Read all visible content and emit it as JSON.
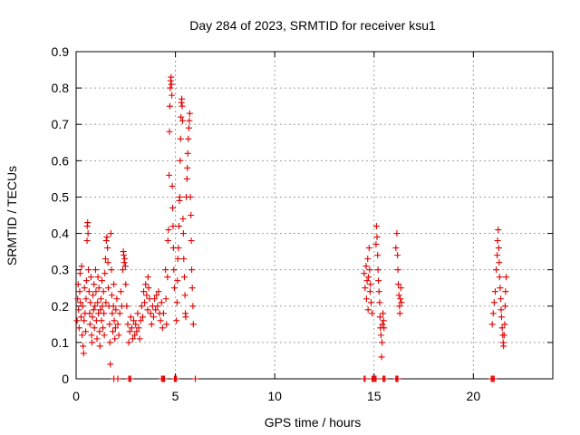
{
  "chart_data": {
    "type": "scatter",
    "title": "Day 284 of 2023, SRMTID for receiver ksu1",
    "xlabel": "GPS time / hours",
    "ylabel": "SRMTID / TECUs",
    "xlim": [
      0,
      24
    ],
    "ylim": [
      0,
      0.9
    ],
    "xticks": [
      0,
      5,
      10,
      15,
      20
    ],
    "yticks": [
      0,
      0.1,
      0.2,
      0.3,
      0.4,
      0.5,
      0.6,
      0.7,
      0.8,
      0.9
    ],
    "grid": true,
    "marker": "plus",
    "color": "#e00000",
    "series": [
      {
        "name": "SRMTID",
        "points": [
          [
            0.05,
            0.16
          ],
          [
            0.08,
            0.22
          ],
          [
            0.1,
            0.26
          ],
          [
            0.12,
            0.19
          ],
          [
            0.15,
            0.14
          ],
          [
            0.18,
            0.24
          ],
          [
            0.2,
            0.29
          ],
          [
            0.22,
            0.21
          ],
          [
            0.25,
            0.17
          ],
          [
            0.28,
            0.31
          ],
          [
            0.3,
            0.12
          ],
          [
            0.33,
            0.2
          ],
          [
            0.35,
            0.09
          ],
          [
            0.38,
            0.07
          ],
          [
            0.4,
            0.16
          ],
          [
            0.42,
            0.25
          ],
          [
            0.45,
            0.18
          ],
          [
            0.48,
            0.13
          ],
          [
            0.5,
            0.22
          ],
          [
            0.52,
            0.27
          ],
          [
            0.55,
            0.38
          ],
          [
            0.56,
            0.42
          ],
          [
            0.58,
            0.43
          ],
          [
            0.6,
            0.4
          ],
          [
            0.62,
            0.3
          ],
          [
            0.65,
            0.24
          ],
          [
            0.68,
            0.18
          ],
          [
            0.7,
            0.15
          ],
          [
            0.72,
            0.21
          ],
          [
            0.75,
            0.28
          ],
          [
            0.78,
            0.12
          ],
          [
            0.8,
            0.1
          ],
          [
            0.82,
            0.17
          ],
          [
            0.85,
            0.23
          ],
          [
            0.88,
            0.19
          ],
          [
            0.9,
            0.26
          ],
          [
            0.92,
            0.14
          ],
          [
            0.95,
            0.2
          ],
          [
            0.98,
            0.3
          ],
          [
            1.0,
            0.24
          ],
          [
            1.02,
            0.16
          ],
          [
            1.05,
            0.11
          ],
          [
            1.08,
            0.21
          ],
          [
            1.1,
            0.28
          ],
          [
            1.12,
            0.18
          ],
          [
            1.15,
            0.25
          ],
          [
            1.18,
            0.13
          ],
          [
            1.2,
            0.09
          ],
          [
            1.22,
            0.19
          ],
          [
            1.25,
            0.22
          ],
          [
            1.28,
            0.16
          ],
          [
            1.3,
            0.27
          ],
          [
            1.32,
            0.2
          ],
          [
            1.35,
            0.14
          ],
          [
            1.38,
            0.24
          ],
          [
            1.4,
            0.18
          ],
          [
            1.42,
            0.12
          ],
          [
            1.45,
            0.29
          ],
          [
            1.48,
            0.33
          ],
          [
            1.5,
            0.21
          ],
          [
            1.52,
            0.38
          ],
          [
            1.55,
            0.39
          ],
          [
            1.58,
            0.36
          ],
          [
            1.6,
            0.32
          ],
          [
            1.62,
            0.25
          ],
          [
            1.65,
            0.2
          ],
          [
            1.68,
            0.15
          ],
          [
            1.7,
            0.1
          ],
          [
            1.72,
            0.04
          ],
          [
            1.75,
            0.4
          ],
          [
            1.78,
            0.3
          ],
          [
            1.8,
            0.23
          ],
          [
            1.82,
            0.18
          ],
          [
            1.85,
            0.13
          ],
          [
            1.88,
            0.2
          ],
          [
            1.9,
            0.26
          ],
          [
            1.92,
            0.16
          ],
          [
            1.95,
            0.11
          ],
          [
            1.98,
            0.14
          ],
          [
            2.0,
            0.19
          ],
          [
            2.05,
            0.22
          ],
          [
            2.1,
            0.15
          ],
          [
            2.15,
            0.12
          ],
          [
            2.2,
            0.18
          ],
          [
            2.25,
            0.24
          ],
          [
            2.3,
            0.2
          ],
          [
            2.35,
            0.3
          ],
          [
            2.38,
            0.35
          ],
          [
            2.4,
            0.34
          ],
          [
            2.42,
            0.32
          ],
          [
            2.45,
            0.33
          ],
          [
            2.48,
            0.31
          ],
          [
            2.5,
            0.26
          ],
          [
            2.55,
            0.2
          ],
          [
            2.6,
            0.15
          ],
          [
            2.65,
            0.1
          ],
          [
            2.7,
            0.13
          ],
          [
            2.75,
            0.17
          ],
          [
            2.8,
            0.14
          ],
          [
            2.85,
            0.11
          ],
          [
            2.9,
            0.16
          ],
          [
            2.95,
            0.12
          ],
          [
            3.0,
            0.15
          ],
          [
            3.05,
            0.13
          ],
          [
            3.1,
            0.18
          ],
          [
            3.15,
            0.14
          ],
          [
            3.2,
            0.11
          ],
          [
            3.25,
            0.16
          ],
          [
            3.3,
            0.2
          ],
          [
            3.35,
            0.17
          ],
          [
            3.4,
            0.24
          ],
          [
            3.45,
            0.21
          ],
          [
            3.5,
            0.26
          ],
          [
            3.55,
            0.23
          ],
          [
            3.6,
            0.19
          ],
          [
            3.62,
            0.28
          ],
          [
            3.65,
            0.25
          ],
          [
            3.7,
            0.22
          ],
          [
            3.75,
            0.18
          ],
          [
            3.8,
            0.15
          ],
          [
            3.85,
            0.2
          ],
          [
            3.9,
            0.17
          ],
          [
            3.95,
            0.22
          ],
          [
            4.0,
            0.19
          ],
          [
            4.05,
            0.23
          ],
          [
            4.1,
            0.2
          ],
          [
            4.15,
            0.24
          ],
          [
            4.2,
            0.18
          ],
          [
            4.25,
            0.16
          ],
          [
            4.3,
            0.21
          ],
          [
            4.35,
            0.14
          ],
          [
            4.4,
            0.18
          ],
          [
            4.5,
            0.3
          ],
          [
            4.52,
            0.22
          ],
          [
            4.55,
            0.15
          ],
          [
            4.6,
            0.28
          ],
          [
            4.62,
            0.38
          ],
          [
            4.65,
            0.41
          ],
          [
            4.68,
            0.56
          ],
          [
            4.7,
            0.68
          ],
          [
            4.72,
            0.75
          ],
          [
            4.74,
            0.8
          ],
          [
            4.76,
            0.82
          ],
          [
            4.78,
            0.83
          ],
          [
            4.8,
            0.81
          ],
          [
            4.82,
            0.78
          ],
          [
            4.84,
            0.53
          ],
          [
            4.86,
            0.47
          ],
          [
            4.88,
            0.42
          ],
          [
            4.9,
            0.36
          ],
          [
            4.92,
            0.3
          ],
          [
            4.95,
            0.25
          ],
          [
            5.05,
            0.16
          ],
          [
            5.08,
            0.21
          ],
          [
            5.1,
            0.27
          ],
          [
            5.12,
            0.33
          ],
          [
            5.15,
            0.36
          ],
          [
            5.18,
            0.42
          ],
          [
            5.2,
            0.49
          ],
          [
            5.22,
            0.5
          ],
          [
            5.24,
            0.6
          ],
          [
            5.26,
            0.66
          ],
          [
            5.28,
            0.72
          ],
          [
            5.3,
            0.76
          ],
          [
            5.32,
            0.77
          ],
          [
            5.34,
            0.75
          ],
          [
            5.36,
            0.71
          ],
          [
            5.38,
            0.44
          ],
          [
            5.4,
            0.4
          ],
          [
            5.42,
            0.33
          ],
          [
            5.45,
            0.28
          ],
          [
            5.48,
            0.23
          ],
          [
            5.5,
            0.18
          ],
          [
            5.52,
            0.17
          ],
          [
            5.55,
            0.5
          ],
          [
            5.58,
            0.55
          ],
          [
            5.6,
            0.58
          ],
          [
            5.62,
            0.62
          ],
          [
            5.65,
            0.66
          ],
          [
            5.68,
            0.69
          ],
          [
            5.7,
            0.71
          ],
          [
            5.72,
            0.73
          ],
          [
            5.75,
            0.5
          ],
          [
            5.78,
            0.45
          ],
          [
            5.8,
            0.38
          ],
          [
            5.82,
            0.3
          ],
          [
            5.85,
            0.25
          ],
          [
            5.88,
            0.2
          ],
          [
            5.9,
            0.15
          ],
          [
            14.5,
            0.29
          ],
          [
            14.55,
            0.25
          ],
          [
            14.6,
            0.31
          ],
          [
            14.62,
            0.22
          ],
          [
            14.65,
            0.27
          ],
          [
            14.68,
            0.33
          ],
          [
            14.7,
            0.19
          ],
          [
            14.72,
            0.28
          ],
          [
            14.75,
            0.36
          ],
          [
            14.78,
            0.3
          ],
          [
            14.8,
            0.24
          ],
          [
            14.82,
            0.26
          ],
          [
            14.85,
            0.21
          ],
          [
            14.9,
            0.18
          ],
          [
            15.1,
            0.37
          ],
          [
            15.12,
            0.42
          ],
          [
            15.15,
            0.39
          ],
          [
            15.18,
            0.34
          ],
          [
            15.2,
            0.3
          ],
          [
            15.22,
            0.27
          ],
          [
            15.25,
            0.24
          ],
          [
            15.28,
            0.21
          ],
          [
            15.3,
            0.17
          ],
          [
            15.32,
            0.14
          ],
          [
            15.35,
            0.12
          ],
          [
            15.38,
            0.06
          ],
          [
            15.4,
            0.1
          ],
          [
            15.42,
            0.15
          ],
          [
            15.45,
            0.18
          ],
          [
            15.48,
            0.16
          ],
          [
            15.5,
            0.14
          ],
          [
            16.1,
            0.36
          ],
          [
            16.15,
            0.4
          ],
          [
            16.18,
            0.34
          ],
          [
            16.2,
            0.3
          ],
          [
            16.22,
            0.26
          ],
          [
            16.25,
            0.23
          ],
          [
            16.28,
            0.2
          ],
          [
            16.3,
            0.18
          ],
          [
            16.32,
            0.22
          ],
          [
            16.35,
            0.25
          ],
          [
            16.38,
            0.21
          ],
          [
            20.95,
            0.15
          ],
          [
            21.0,
            0.18
          ],
          [
            21.05,
            0.21
          ],
          [
            21.1,
            0.24
          ],
          [
            21.15,
            0.3
          ],
          [
            21.2,
            0.34
          ],
          [
            21.22,
            0.38
          ],
          [
            21.25,
            0.41
          ],
          [
            21.28,
            0.36
          ],
          [
            21.3,
            0.32
          ],
          [
            21.32,
            0.28
          ],
          [
            21.35,
            0.25
          ],
          [
            21.38,
            0.22
          ],
          [
            21.4,
            0.19
          ],
          [
            21.42,
            0.17
          ],
          [
            21.45,
            0.14
          ],
          [
            21.48,
            0.12
          ],
          [
            21.5,
            0.1
          ],
          [
            21.52,
            0.09
          ],
          [
            21.55,
            0.12
          ],
          [
            21.58,
            0.15
          ],
          [
            21.6,
            0.2
          ],
          [
            21.62,
            0.24
          ],
          [
            21.65,
            0.28
          ],
          [
            1.9,
            0
          ],
          [
            2.1,
            0
          ],
          [
            2.65,
            0
          ],
          [
            2.7,
            0
          ],
          [
            2.75,
            0
          ],
          [
            4.3,
            0
          ],
          [
            4.35,
            0
          ],
          [
            4.4,
            0
          ],
          [
            4.45,
            0
          ],
          [
            4.95,
            0
          ],
          [
            5.0,
            0
          ],
          [
            5.05,
            0
          ],
          [
            6.0,
            0
          ],
          [
            14.5,
            0
          ],
          [
            14.55,
            0
          ],
          [
            14.9,
            0
          ],
          [
            14.95,
            0
          ],
          [
            15.0,
            0
          ],
          [
            15.05,
            0
          ],
          [
            15.1,
            0
          ],
          [
            15.45,
            0
          ],
          [
            15.5,
            0
          ],
          [
            15.55,
            0
          ],
          [
            16.1,
            0
          ],
          [
            16.15,
            0
          ],
          [
            16.2,
            0
          ],
          [
            20.9,
            0
          ],
          [
            20.95,
            0
          ],
          [
            21.0,
            0
          ],
          [
            21.05,
            0
          ]
        ]
      }
    ]
  }
}
